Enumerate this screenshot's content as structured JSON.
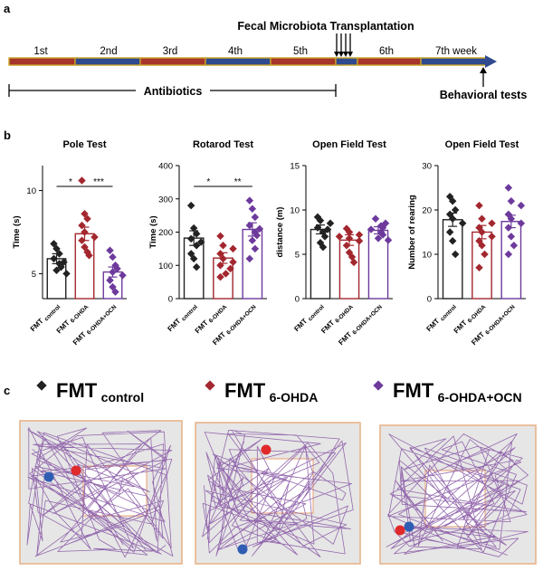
{
  "panels": {
    "a": "a",
    "b": "b",
    "c": "c"
  },
  "timeline": {
    "weeks": [
      "1st",
      "2nd",
      "3rd",
      "4th",
      "5th",
      "6th",
      "7th week"
    ],
    "fmt_label": "Fecal Microbiota Transplantation",
    "antibiotics_label": "Antibiotics",
    "behavior_label": "Behavioral tests",
    "colors": {
      "red_segment": "#a6352b",
      "blue_segment": "#2f4a8e",
      "outline": "#c9a227"
    }
  },
  "group_labels": [
    "FMT control",
    "FMT 6-OHDA",
    "FMT 6-OHDA+OCN"
  ],
  "colors": {
    "control": "#222222",
    "ohda": "#a3272e",
    "ocn": "#6d3a9c",
    "red_dot": "#e0292a",
    "blue_dot": "#2f5db3",
    "track": "#8a5aa6"
  },
  "chart_data": [
    {
      "type": "bar",
      "title": "Pole Test",
      "ylabel": "Time (s)",
      "ylim": [
        3.5,
        11.5
      ],
      "yticks": [
        5,
        10
      ],
      "categories": [
        "FMT control",
        "FMT 6-OHDA",
        "FMT 6-OHDA+OCN"
      ],
      "values": [
        5.9,
        7.4,
        5.1
      ],
      "sem": [
        0.3,
        0.4,
        0.3
      ],
      "points": [
        [
          6.8,
          6.5,
          6.2,
          5.9,
          5.7,
          5.6,
          5.4,
          5.2,
          5.0
        ],
        [
          10.6,
          8.6,
          8.3,
          7.9,
          7.5,
          7.2,
          7.0,
          6.6,
          6.3,
          6.1
        ],
        [
          6.4,
          6.0,
          5.5,
          5.3,
          5.1,
          4.9,
          4.6,
          4.2,
          3.9
        ]
      ],
      "significance": [
        {
          "from": 0,
          "to": 1,
          "label": "*"
        },
        {
          "from": 1,
          "to": 2,
          "label": "***"
        }
      ]
    },
    {
      "type": "bar",
      "title": "Rotarod Test",
      "ylabel": "Time (s)",
      "ylim": [
        0,
        400
      ],
      "yticks": [
        0,
        100,
        200,
        300,
        400
      ],
      "categories": [
        "FMT control",
        "FMT 6-OHDA",
        "FMT 6-OHDA+OCN"
      ],
      "values": [
        182,
        122,
        208
      ],
      "sem": [
        22,
        16,
        20
      ],
      "points": [
        [
          280,
          212,
          195,
          180,
          170,
          160,
          135,
          120,
          95
        ],
        [
          188,
          160,
          150,
          135,
          120,
          110,
          100,
          90,
          75,
          65
        ],
        [
          295,
          270,
          245,
          220,
          210,
          200,
          190,
          175,
          150,
          120
        ]
      ],
      "significance": [
        {
          "from": 0,
          "to": 1,
          "label": "*"
        },
        {
          "from": 1,
          "to": 2,
          "label": "**"
        }
      ]
    },
    {
      "type": "bar",
      "title": "Open Field Test",
      "ylabel": "distance (m)",
      "ylim": [
        0,
        15
      ],
      "yticks": [
        0,
        5,
        10,
        15
      ],
      "categories": [
        "FMT control",
        "FMT 6-OHDA",
        "FMT 6-OHDA+OCN"
      ],
      "values": [
        7.8,
        6.6,
        7.7
      ],
      "sem": [
        0.5,
        0.6,
        0.4
      ],
      "points": [
        [
          9.2,
          8.8,
          8.5,
          8.0,
          7.8,
          7.5,
          7.0,
          6.3,
          5.8
        ],
        [
          7.9,
          7.5,
          7.2,
          7.0,
          6.8,
          6.5,
          6.0,
          5.2,
          4.7,
          4.1
        ],
        [
          9.0,
          8.5,
          8.2,
          8.0,
          7.8,
          7.5,
          7.2,
          6.8,
          6.6
        ]
      ],
      "significance": []
    },
    {
      "type": "bar",
      "title": "Open Field Test",
      "ylabel": "Number of rearing",
      "ylim": [
        0,
        30
      ],
      "yticks": [
        0,
        10,
        20,
        30
      ],
      "categories": [
        "FMT control",
        "FMT 6-OHDA",
        "FMT 6-OHDA+OCN"
      ],
      "values": [
        17.8,
        15.0,
        17.4
      ],
      "sem": [
        1.5,
        1.5,
        1.4
      ],
      "points": [
        [
          23,
          22,
          20,
          19,
          18,
          17,
          15,
          13,
          10
        ],
        [
          21,
          18,
          17,
          16,
          15,
          14,
          13,
          12,
          10,
          7
        ],
        [
          25,
          22,
          21,
          19,
          18,
          17,
          16,
          14,
          12,
          10
        ]
      ],
      "significance": []
    }
  ],
  "legend_c": {
    "control": {
      "main": "FMT",
      "sub": "control"
    },
    "ohda": {
      "main": "FMT",
      "sub": "6-OHDA"
    },
    "ocn": {
      "main": "FMT",
      "sub": "6-OHDA+OCN"
    }
  }
}
